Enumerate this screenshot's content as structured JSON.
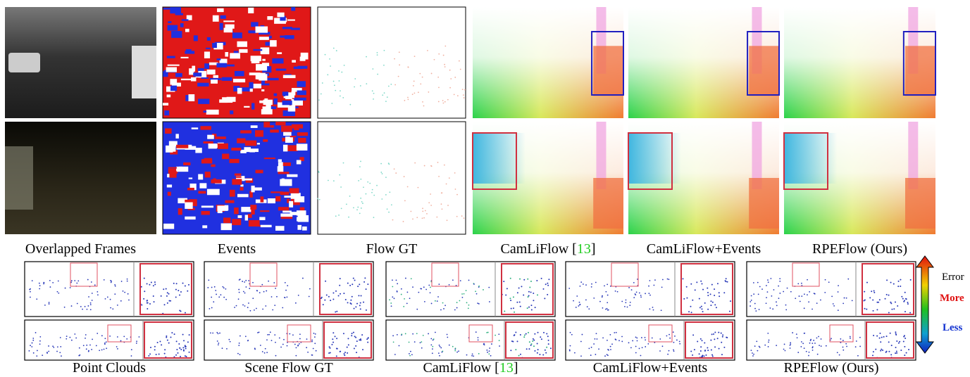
{
  "top_captions": [
    [
      "Overlapped Frames"
    ],
    [
      "Events"
    ],
    [
      "Flow GT"
    ],
    [
      "CamLiFlow [",
      "13",
      "]"
    ],
    [
      "CamLiFlow+Events"
    ],
    [
      "RPEFlow (Ours)"
    ]
  ],
  "bottom_captions": [
    [
      "Point Clouds"
    ],
    [
      "Scene Flow GT"
    ],
    [
      "CamLiFlow [",
      "13",
      "]"
    ],
    [
      "CamLiFlow+Events"
    ],
    [
      "RPEFlow (Ours)"
    ]
  ],
  "legend": {
    "top": "Error",
    "more": "More",
    "less": "Less"
  }
}
